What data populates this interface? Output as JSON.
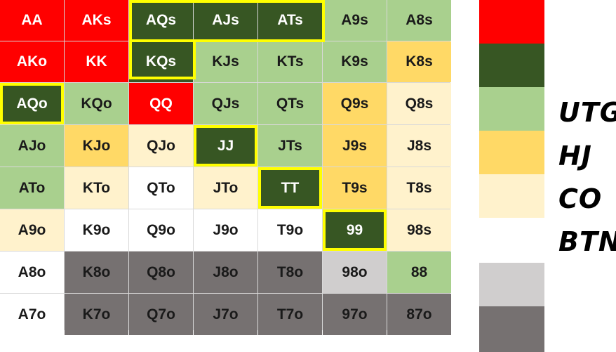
{
  "colors": {
    "premium": "#ff0000",
    "utg": "#375623",
    "hj": "#a9d08e",
    "co": "#ffd966",
    "btn": "#fff2cc",
    "none": "#ffffff",
    "light_gray": "#d0cece",
    "dark_gray": "#767171",
    "highlight": "#ffff00"
  },
  "grid": {
    "rows": [
      [
        {
          "hand": "AA",
          "tier": "premium"
        },
        {
          "hand": "AKs",
          "tier": "premium"
        },
        {
          "hand": "AQs",
          "tier": "utg"
        },
        {
          "hand": "AJs",
          "tier": "utg"
        },
        {
          "hand": "ATs",
          "tier": "utg"
        },
        {
          "hand": "A9s",
          "tier": "hj"
        },
        {
          "hand": "A8s",
          "tier": "hj"
        }
      ],
      [
        {
          "hand": "AKo",
          "tier": "premium"
        },
        {
          "hand": "KK",
          "tier": "premium"
        },
        {
          "hand": "KQs",
          "tier": "utg"
        },
        {
          "hand": "KJs",
          "tier": "hj"
        },
        {
          "hand": "KTs",
          "tier": "hj"
        },
        {
          "hand": "K9s",
          "tier": "hj"
        },
        {
          "hand": "K8s",
          "tier": "co"
        }
      ],
      [
        {
          "hand": "AQo",
          "tier": "utg",
          "highlight": true
        },
        {
          "hand": "KQo",
          "tier": "hj"
        },
        {
          "hand": "QQ",
          "tier": "premium"
        },
        {
          "hand": "QJs",
          "tier": "hj"
        },
        {
          "hand": "QTs",
          "tier": "hj"
        },
        {
          "hand": "Q9s",
          "tier": "co"
        },
        {
          "hand": "Q8s",
          "tier": "btn"
        }
      ],
      [
        {
          "hand": "AJo",
          "tier": "hj"
        },
        {
          "hand": "KJo",
          "tier": "co"
        },
        {
          "hand": "QJo",
          "tier": "btn"
        },
        {
          "hand": "JJ",
          "tier": "utg",
          "highlight": true
        },
        {
          "hand": "JTs",
          "tier": "hj"
        },
        {
          "hand": "J9s",
          "tier": "co"
        },
        {
          "hand": "J8s",
          "tier": "btn"
        }
      ],
      [
        {
          "hand": "ATo",
          "tier": "hj"
        },
        {
          "hand": "KTo",
          "tier": "btn"
        },
        {
          "hand": "QTo",
          "tier": "none"
        },
        {
          "hand": "JTo",
          "tier": "btn"
        },
        {
          "hand": "TT",
          "tier": "utg",
          "highlight": true
        },
        {
          "hand": "T9s",
          "tier": "co"
        },
        {
          "hand": "T8s",
          "tier": "btn"
        }
      ],
      [
        {
          "hand": "A9o",
          "tier": "btn"
        },
        {
          "hand": "K9o",
          "tier": "none"
        },
        {
          "hand": "Q9o",
          "tier": "none"
        },
        {
          "hand": "J9o",
          "tier": "none"
        },
        {
          "hand": "T9o",
          "tier": "none"
        },
        {
          "hand": "99",
          "tier": "utg",
          "highlight": true
        },
        {
          "hand": "98s",
          "tier": "btn"
        }
      ],
      [
        {
          "hand": "A8o",
          "tier": "none"
        },
        {
          "hand": "K8o",
          "tier": "dark"
        },
        {
          "hand": "Q8o",
          "tier": "dark"
        },
        {
          "hand": "J8o",
          "tier": "dark"
        },
        {
          "hand": "T8o",
          "tier": "dark"
        },
        {
          "hand": "98o",
          "tier": "light"
        },
        {
          "hand": "88",
          "tier": "hj"
        }
      ],
      [
        {
          "hand": "A7o",
          "tier": "none"
        },
        {
          "hand": "K7o",
          "tier": "dark"
        },
        {
          "hand": "Q7o",
          "tier": "dark"
        },
        {
          "hand": "J7o",
          "tier": "dark"
        },
        {
          "hand": "T7o",
          "tier": "dark"
        },
        {
          "hand": "97o",
          "tier": "dark"
        },
        {
          "hand": "87o",
          "tier": "dark"
        }
      ]
    ]
  },
  "legend": {
    "swatches": [
      "premium",
      "utg",
      "hj",
      "co",
      "btn",
      "none",
      "light",
      "dark"
    ],
    "positions": [
      "UTG",
      "HJ",
      "CO",
      "BTN"
    ]
  }
}
